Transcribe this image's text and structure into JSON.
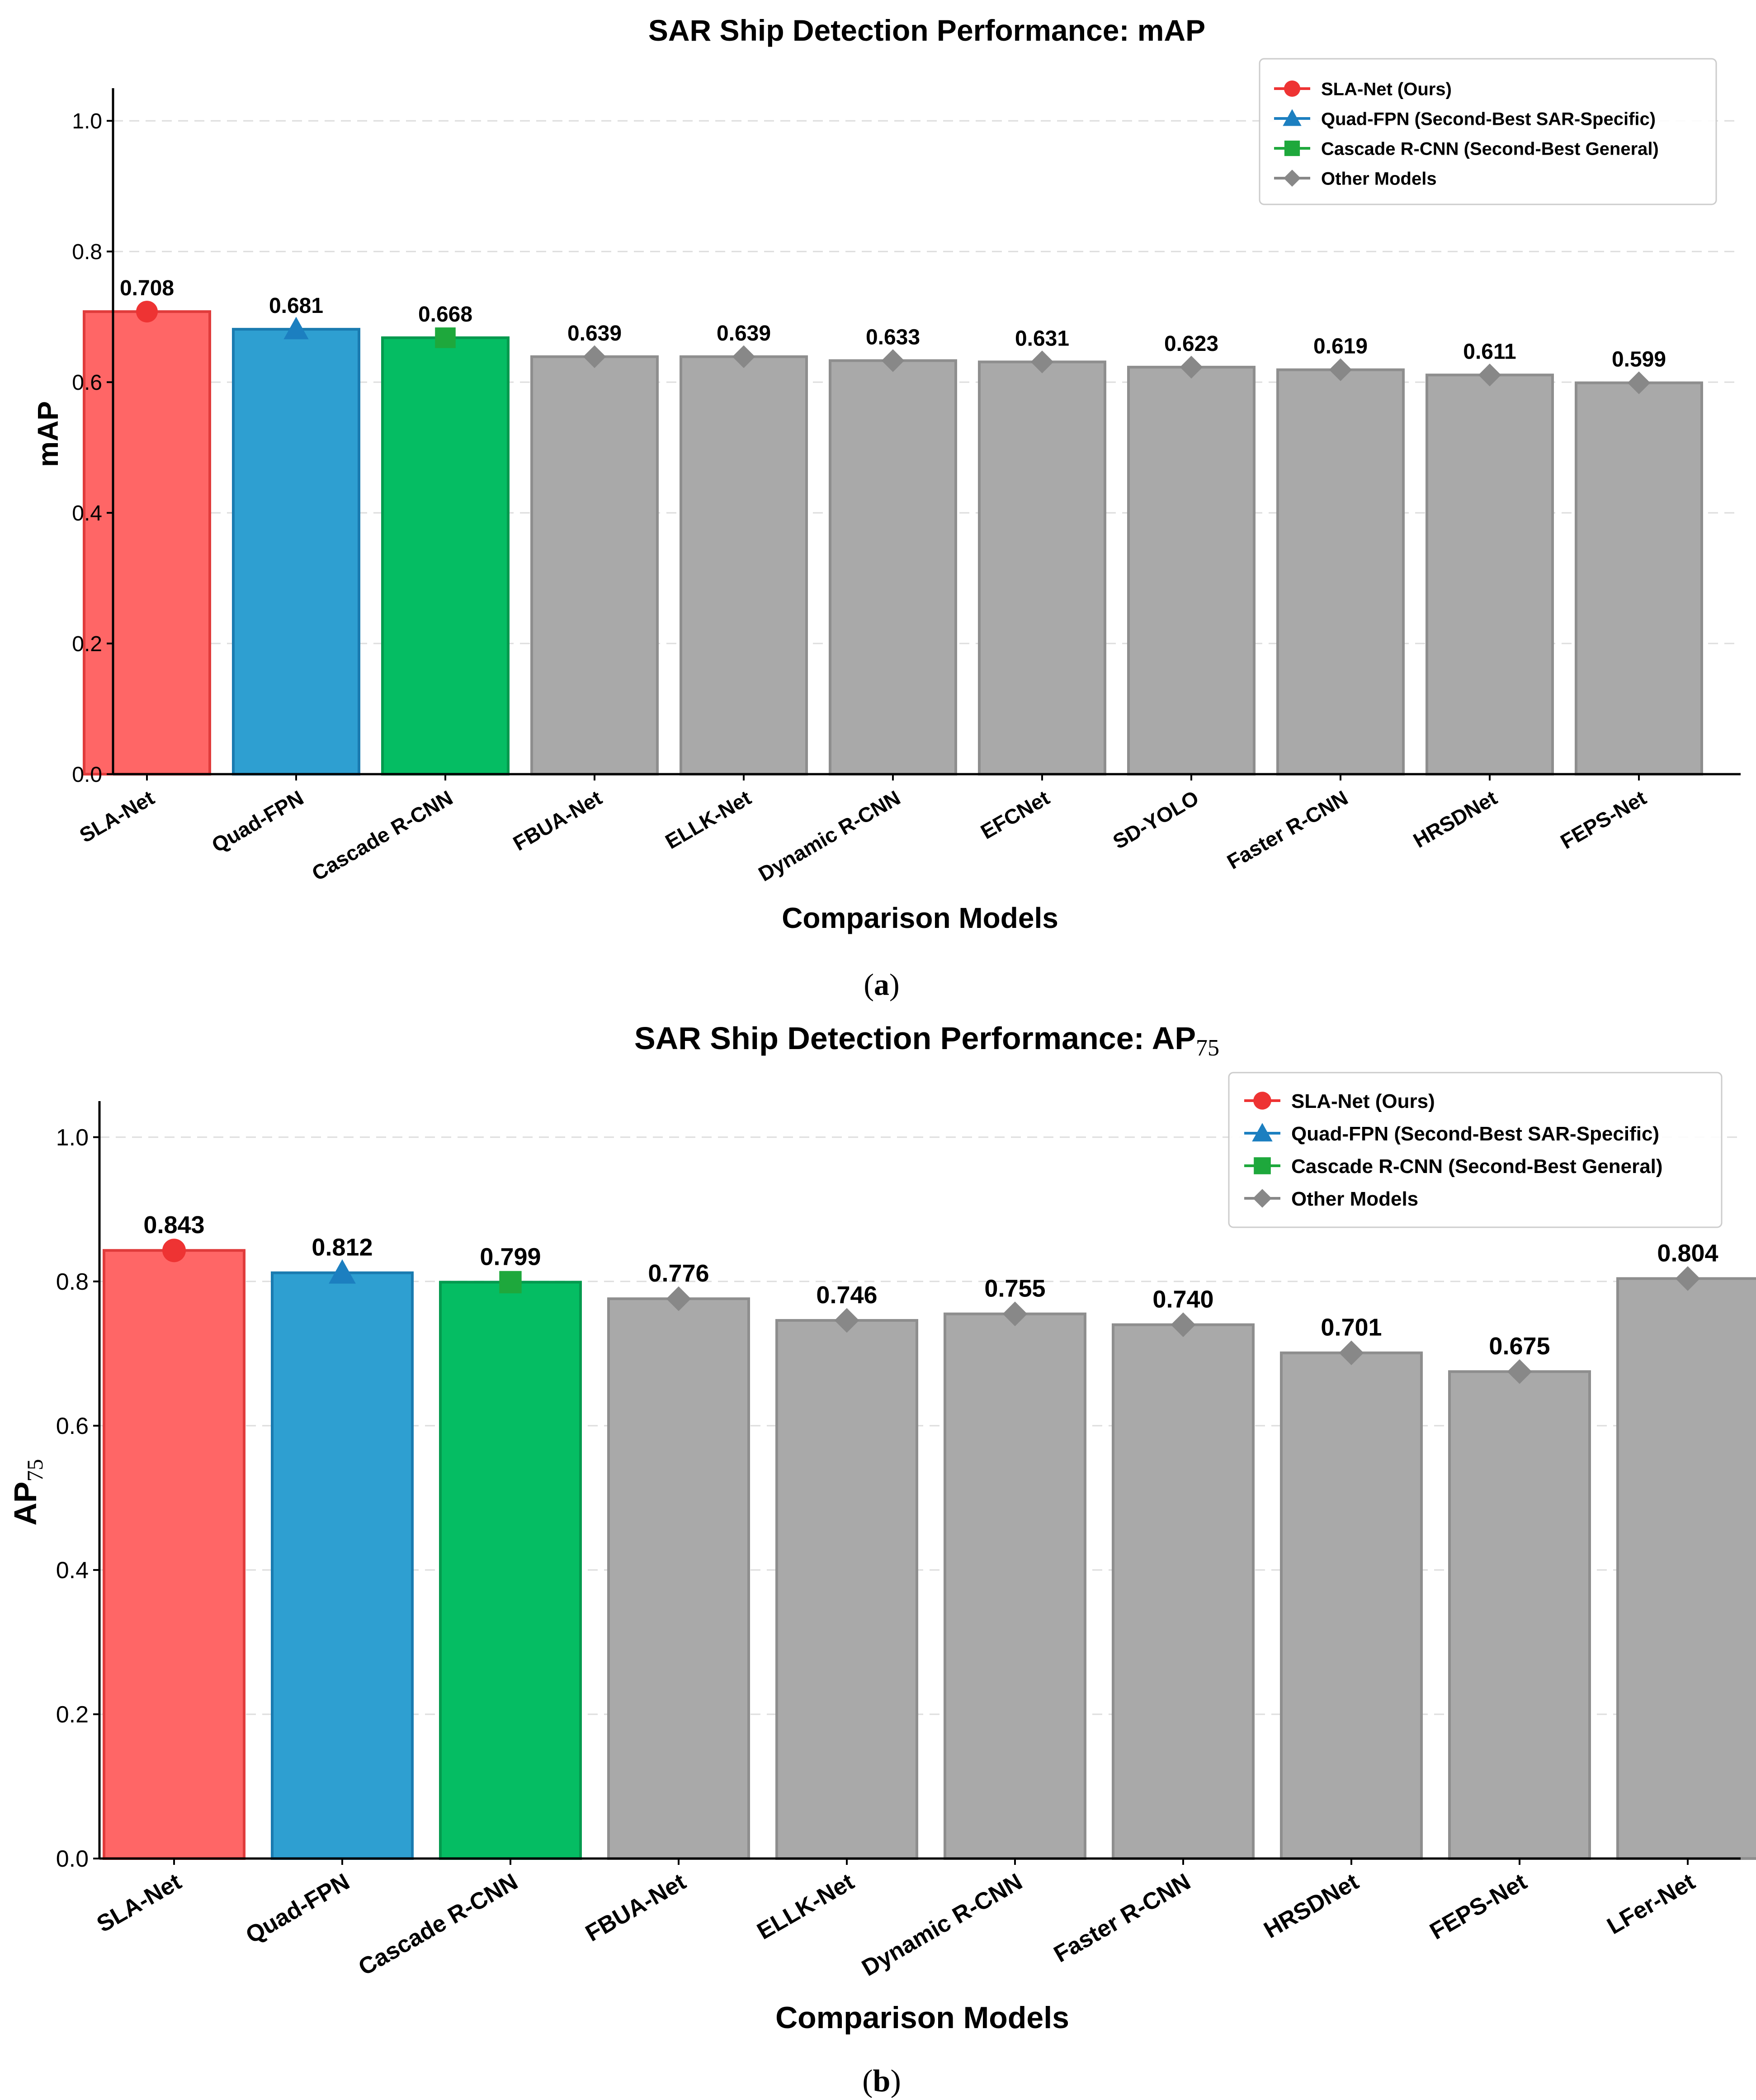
{
  "colors": {
    "sla": "#ff6666",
    "sla_edge": "#e03c3c",
    "sla_marker": "#ee3333",
    "quad": "#2e9fd1",
    "quad_edge": "#1a7bb0",
    "quad_marker": "#1c7fc0",
    "cascade": "#05bd63",
    "cascade_edge": "#049a4e",
    "cascade_marker": "#1ea83c",
    "other": "#a9a9a9",
    "other_edge": "#8e8e8e",
    "other_marker": "#888888",
    "grid": "#dddddd",
    "axis": "#000000"
  },
  "chart_data": [
    {
      "type": "bar",
      "title": "SAR Ship Detection Performance: mAP",
      "title_main": "SAR Ship Detection Performance: mAP",
      "title_sub": "",
      "xlabel": "Comparison Models",
      "ylabel": "mAP",
      "ylabel_main": "mAP",
      "ylabel_sub": "",
      "caption": "(a)",
      "caption_open": "(",
      "caption_letter": "a",
      "caption_close": ")",
      "ylim": [
        0,
        1.05
      ],
      "yticks": [
        0.0,
        0.2,
        0.4,
        0.6,
        0.8,
        1.0
      ],
      "ytick_labels": [
        "0.0",
        "0.2",
        "0.4",
        "0.6",
        "0.8",
        "1.0"
      ],
      "grid": "horizontal dashed",
      "legend_position": "top-right",
      "categories": [
        "SLA-Net",
        "Quad-FPN",
        "Cascade R-CNN",
        "FBUA-Net",
        "ELLK-Net",
        "Dynamic R-CNN",
        "EFCNet",
        "SD-YOLO",
        "Faster R-CNN",
        "HRSDNet",
        "FEPS-Net"
      ],
      "values": [
        0.708,
        0.681,
        0.668,
        0.639,
        0.639,
        0.633,
        0.631,
        0.623,
        0.619,
        0.611,
        0.599
      ],
      "value_labels": [
        "0.708",
        "0.681",
        "0.668",
        "0.639",
        "0.639",
        "0.633",
        "0.631",
        "0.623",
        "0.619",
        "0.611",
        "0.599"
      ],
      "groups": [
        "sla",
        "quad",
        "cascade",
        "other",
        "other",
        "other",
        "other",
        "other",
        "other",
        "other",
        "other"
      ],
      "legend": [
        {
          "label": "SLA-Net (Ours)",
          "group": "sla",
          "marker": "circle"
        },
        {
          "label": "Quad-FPN (Second-Best SAR-Specific)",
          "group": "quad",
          "marker": "triangle"
        },
        {
          "label": "Cascade R-CNN (Second-Best General)",
          "group": "cascade",
          "marker": "square"
        },
        {
          "label": "Other Models",
          "group": "other",
          "marker": "diamond"
        }
      ]
    },
    {
      "type": "bar",
      "title": "SAR Ship Detection Performance: AP75",
      "title_main": "SAR Ship Detection Performance: AP",
      "title_sub": "75",
      "xlabel": "Comparison Models",
      "ylabel": "AP75",
      "ylabel_main": "AP",
      "ylabel_sub": "75",
      "caption": "(b)",
      "caption_open": "(",
      "caption_letter": "b",
      "caption_close": ")",
      "ylim": [
        0,
        1.05
      ],
      "yticks": [
        0.0,
        0.2,
        0.4,
        0.6,
        0.8,
        1.0
      ],
      "ytick_labels": [
        "0.0",
        "0.2",
        "0.4",
        "0.6",
        "0.8",
        "1.0"
      ],
      "grid": "horizontal dashed",
      "legend_position": "top-right",
      "categories": [
        "SLA-Net",
        "Quad-FPN",
        "Cascade R-CNN",
        "FBUA-Net",
        "ELLK-Net",
        "Dynamic R-CNN",
        "Faster R-CNN",
        "HRSDNet",
        "FEPS-Net",
        "LFer-Net"
      ],
      "values": [
        0.843,
        0.812,
        0.799,
        0.776,
        0.746,
        0.755,
        0.74,
        0.701,
        0.675,
        0.804
      ],
      "value_labels": [
        "0.843",
        "0.812",
        "0.799",
        "0.776",
        "0.746",
        "0.755",
        "0.740",
        "0.701",
        "0.675",
        "0.804"
      ],
      "groups": [
        "sla",
        "quad",
        "cascade",
        "other",
        "other",
        "other",
        "other",
        "other",
        "other",
        "other"
      ],
      "legend": [
        {
          "label": "SLA-Net (Ours)",
          "group": "sla",
          "marker": "circle"
        },
        {
          "label": "Quad-FPN (Second-Best SAR-Specific)",
          "group": "quad",
          "marker": "triangle"
        },
        {
          "label": "Cascade R-CNN (Second-Best General)",
          "group": "cascade",
          "marker": "square"
        },
        {
          "label": "Other Models",
          "group": "other",
          "marker": "diamond"
        }
      ]
    }
  ]
}
